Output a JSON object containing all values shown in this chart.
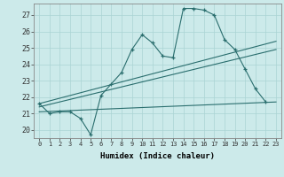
{
  "title": "",
  "xlabel": "Humidex (Indice chaleur)",
  "background_color": "#cceaea",
  "line_color": "#2a6e6e",
  "grid_color": "#aad4d4",
  "xlim": [
    -0.5,
    23.5
  ],
  "ylim": [
    19.5,
    27.7
  ],
  "yticks": [
    20,
    21,
    22,
    23,
    24,
    25,
    26,
    27
  ],
  "xticks": [
    0,
    1,
    2,
    3,
    4,
    5,
    6,
    7,
    8,
    9,
    10,
    11,
    12,
    13,
    14,
    15,
    16,
    17,
    18,
    19,
    20,
    21,
    22,
    23
  ],
  "series1_x": [
    0,
    1,
    2,
    3,
    4,
    5,
    6,
    7,
    8,
    9,
    10,
    11,
    12,
    13,
    14,
    15,
    16,
    17,
    18,
    19,
    20,
    21,
    22
  ],
  "series1_y": [
    21.6,
    21.0,
    21.1,
    21.1,
    20.7,
    19.7,
    22.1,
    22.8,
    23.5,
    24.9,
    25.8,
    25.3,
    24.5,
    24.4,
    27.4,
    27.4,
    27.3,
    27.0,
    25.5,
    24.9,
    23.7,
    22.5,
    21.7
  ],
  "line1_x": [
    0,
    23
  ],
  "line1_y": [
    21.1,
    21.7
  ],
  "line2_x": [
    0,
    23
  ],
  "line2_y": [
    21.4,
    24.9
  ],
  "line3_x": [
    0,
    23
  ],
  "line3_y": [
    21.6,
    25.4
  ]
}
